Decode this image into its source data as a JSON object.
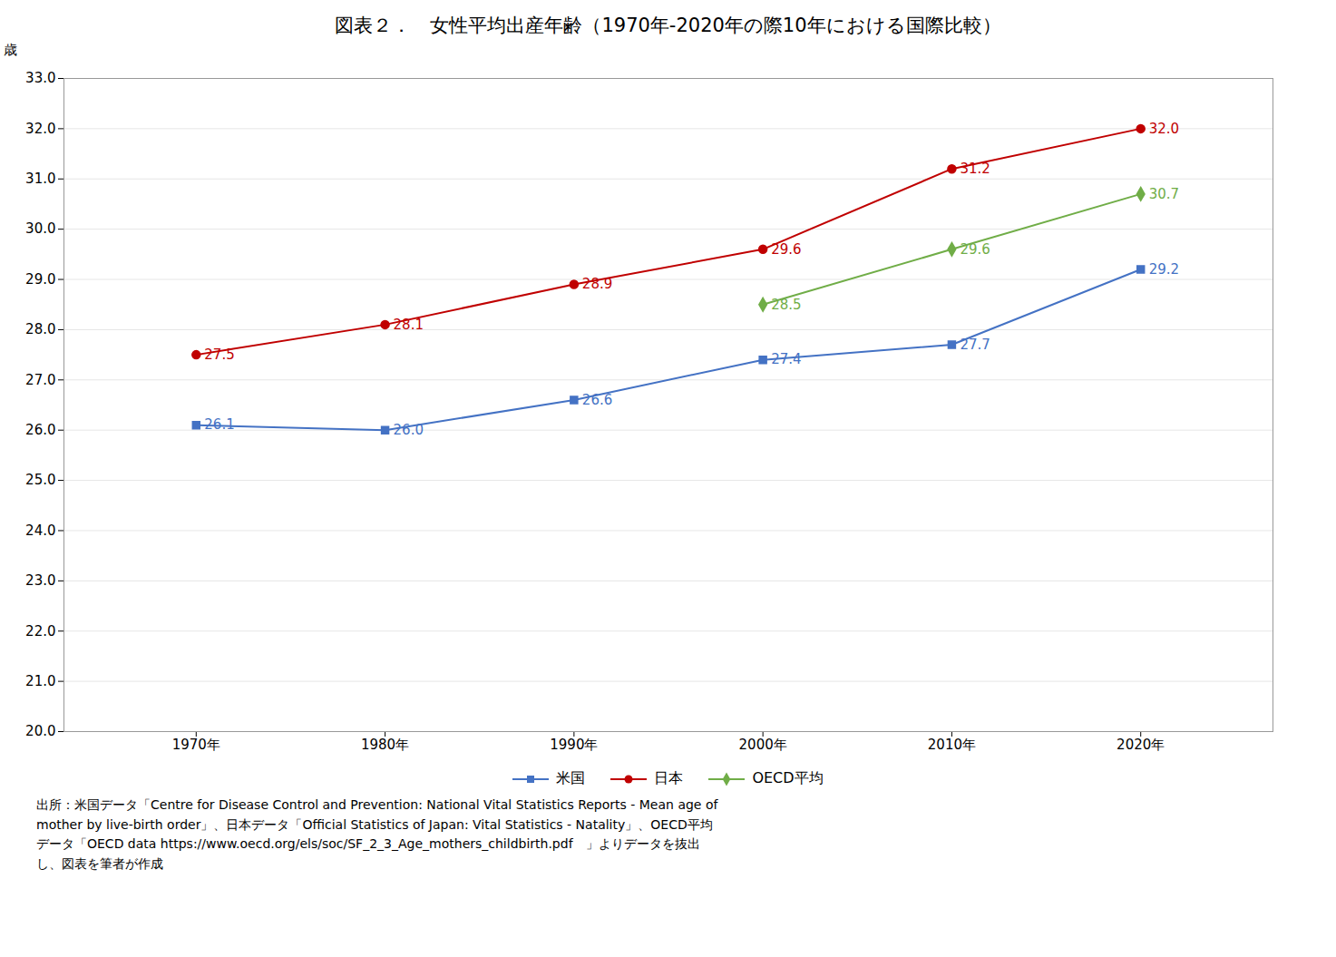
{
  "chart_data": {
    "type": "line",
    "title": "図表２．　女性平均出産年齢（1970年-2020年の際10年における国際比較）",
    "x": [
      1970,
      1980,
      1990,
      2000,
      2010,
      2020
    ],
    "xlim": [
      1963,
      2027
    ],
    "xticks": [
      {
        "value": 1970,
        "label": "1970年"
      },
      {
        "value": 1980,
        "label": "1980年"
      },
      {
        "value": 1990,
        "label": "1990年"
      },
      {
        "value": 2000,
        "label": "2000年"
      },
      {
        "value": 2010,
        "label": "2010年"
      },
      {
        "value": 2020,
        "label": "2020年"
      }
    ],
    "ylabel": "歳",
    "ylim": [
      20.0,
      33.0
    ],
    "yticks": [
      {
        "value": 20,
        "label": "20.0"
      },
      {
        "value": 21,
        "label": "21.0"
      },
      {
        "value": 22,
        "label": "22.0"
      },
      {
        "value": 23,
        "label": "23.0"
      },
      {
        "value": 24,
        "label": "24.0"
      },
      {
        "value": 25,
        "label": "25.0"
      },
      {
        "value": 26,
        "label": "26.0"
      },
      {
        "value": 27,
        "label": "27.0"
      },
      {
        "value": 28,
        "label": "28.0"
      },
      {
        "value": 29,
        "label": "29.0"
      },
      {
        "value": 30,
        "label": "30.0"
      },
      {
        "value": 31,
        "label": "31.0"
      },
      {
        "value": 32,
        "label": "32.0"
      },
      {
        "value": 33,
        "label": "33.0"
      }
    ],
    "grid": true,
    "legend": "bottom",
    "data_labels": true,
    "series": [
      {
        "name": "米国",
        "color": "#4472C4",
        "marker": "square",
        "values": [
          26.1,
          26.0,
          26.6,
          27.4,
          27.7,
          29.2
        ],
        "value_labels": [
          "26.1",
          "26.0",
          "26.6",
          "27.4",
          "27.7",
          "29.2"
        ]
      },
      {
        "name": "日本",
        "color": "#C00000",
        "marker": "circle",
        "values": [
          27.5,
          28.1,
          28.9,
          29.6,
          31.2,
          32.0
        ],
        "value_labels": [
          "27.5",
          "28.1",
          "28.9",
          "29.6",
          "31.2",
          "32.0"
        ]
      },
      {
        "name": "OECD平均",
        "color": "#70AD47",
        "marker": "diamond",
        "values": [
          null,
          null,
          null,
          28.5,
          29.6,
          30.7
        ],
        "value_labels": [
          null,
          null,
          null,
          "28.5",
          "29.6",
          "30.7"
        ]
      }
    ],
    "caption": [
      "出所：米国データ「Centre for Disease Control and Prevention: National Vital Statistics Reports - Mean age of",
      "mother by live-birth order」、日本データ「Official Statistics of Japan: Vital Statistics - Natality」、OECD平均",
      "データ「OECD data https://www.oecd.org/els/soc/SF_2_3_Age_mothers_childbirth.pdf　」よりデータを抜出",
      "し、図表を筆者が作成"
    ]
  }
}
